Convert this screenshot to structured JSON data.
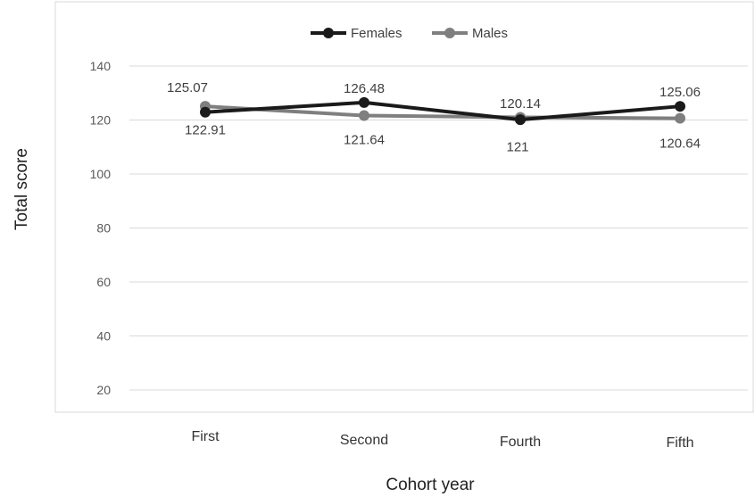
{
  "chart_data": {
    "type": "line",
    "title": "",
    "xlabel": "Cohort year",
    "ylabel": "Total score",
    "categories": [
      "First",
      "Second",
      "Fourth",
      "Fifth"
    ],
    "ylim": [
      20,
      140
    ],
    "yticks": [
      20,
      40,
      60,
      80,
      100,
      120,
      140
    ],
    "grid": true,
    "legend_position": "top-center",
    "series": [
      {
        "name": "Females",
        "color": "#1a1a1a",
        "values": [
          122.91,
          126.48,
          120.14,
          125.06
        ],
        "labels": [
          "122.91",
          "126.48",
          "120.14",
          "125.06"
        ]
      },
      {
        "name": "Males",
        "color": "#7f7f7f",
        "values": [
          125.07,
          121.64,
          121,
          120.64
        ],
        "labels": [
          "125.07",
          "121.64",
          "121",
          "120.64"
        ]
      }
    ]
  }
}
